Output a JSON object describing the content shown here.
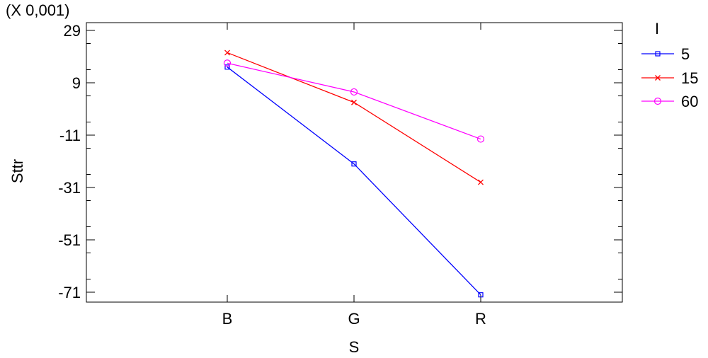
{
  "chart_data": {
    "type": "line",
    "title": "",
    "scale_note": "(X 0,001)",
    "xlabel": "S",
    "ylabel": "Sttr",
    "categories": [
      "B",
      "G",
      "R"
    ],
    "ylim": [
      -74,
      29
    ],
    "yticks": [
      29,
      9,
      -11,
      -31,
      -51,
      -71
    ],
    "ytick_labels": [
      "29",
      "9",
      "-11",
      "-31",
      "-51",
      "-71"
    ],
    "grid": false,
    "legend": {
      "title": "I",
      "position": "right"
    },
    "series": [
      {
        "name": "5",
        "values": [
          15,
          -22,
          -72
        ],
        "color": "#0000ff",
        "marker": "square"
      },
      {
        "name": "15",
        "values": [
          20.5,
          1.5,
          -29
        ],
        "color": "#ff0000",
        "marker": "x"
      },
      {
        "name": "60",
        "values": [
          16.5,
          5.5,
          -12.5
        ],
        "color": "#ff00ff",
        "marker": "circle"
      }
    ]
  }
}
